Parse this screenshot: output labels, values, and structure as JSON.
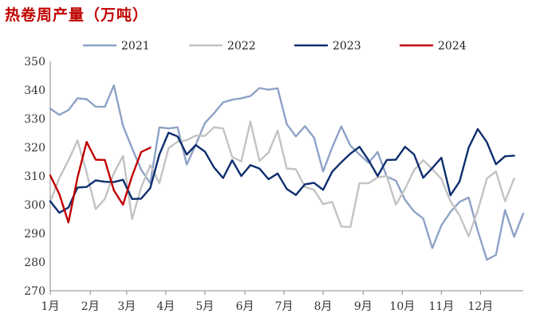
{
  "chart_data": {
    "type": "line",
    "title": "热卷周产量（万吨）",
    "xlabel": "",
    "ylabel": "",
    "ylim": [
      270,
      350
    ],
    "yticks": [
      270,
      280,
      290,
      300,
      310,
      320,
      330,
      340,
      350
    ],
    "x_range": [
      1,
      53
    ],
    "x_ticks": [
      {
        "label": "1月",
        "week": 1
      },
      {
        "label": "2月",
        "week": 5.4
      },
      {
        "label": "3月",
        "week": 9.4
      },
      {
        "label": "4月",
        "week": 13.7
      },
      {
        "label": "5月",
        "week": 18
      },
      {
        "label": "6月",
        "week": 22.4
      },
      {
        "label": "7月",
        "week": 26.7
      },
      {
        "label": "8月",
        "week": 31
      },
      {
        "label": "9月",
        "week": 35.4
      },
      {
        "label": "10月",
        "week": 39.7
      },
      {
        "label": "11月",
        "week": 44
      },
      {
        "label": "12月",
        "week": 48.3
      }
    ],
    "grid": false,
    "legend_position": "top",
    "series": [
      {
        "name": "2021",
        "color": "#8ea2c6",
        "values": [
          333.5,
          331.3,
          333.0,
          337.1,
          336.8,
          334.2,
          334.1,
          341.6,
          327.5,
          319.7,
          312.2,
          307.5,
          327.0,
          326.6,
          327.0,
          314.0,
          321.0,
          328.5,
          331.9,
          335.7,
          336.6,
          337.1,
          337.9,
          340.7,
          340.1,
          340.6,
          328.1,
          323.8,
          327.4,
          323.4,
          311.6,
          320.0,
          327.3,
          320.6,
          317.5,
          314.6,
          318.4,
          309.8,
          308.4,
          301.7,
          297.6,
          295.2,
          284.9,
          292.8,
          297.5,
          301.0,
          302.5,
          290.9,
          280.8,
          282.5,
          298.1,
          288.8,
          296.9
        ]
      },
      {
        "name": "2022",
        "color": "#c3c3c3",
        "values": [
          301.0,
          309.3,
          315.5,
          322.4,
          311.2,
          298.5,
          302.0,
          311.0,
          317.0,
          295.0,
          306.0,
          313.8,
          307.5,
          319.7,
          322.0,
          322.5,
          324.1,
          324.0,
          327.0,
          326.6,
          316.6,
          315.1,
          329.0,
          315.3,
          318.2,
          325.9,
          312.6,
          312.4,
          306.2,
          305.2,
          300.2,
          301.0,
          292.4,
          292.2,
          307.5,
          307.5,
          309.5,
          310.0,
          300.0,
          305.5,
          312.1,
          315.5,
          312.4,
          309.0,
          301.2,
          296.2,
          289.0,
          298.0,
          309.1,
          311.6,
          301.2,
          309.1
        ]
      },
      {
        "name": "2023",
        "color": "#0d2e6e",
        "values": [
          301.2,
          297.2,
          299.0,
          306.0,
          306.2,
          308.5,
          308.0,
          307.9,
          308.7,
          302.0,
          302.1,
          305.8,
          317.5,
          325.1,
          323.8,
          317.5,
          320.8,
          318.5,
          313.0,
          309.3,
          315.5,
          310.0,
          313.8,
          312.6,
          308.9,
          310.9,
          305.5,
          303.4,
          307.1,
          307.6,
          305.2,
          311.5,
          314.8,
          317.8,
          320.2,
          315.5,
          310.0,
          315.6,
          315.7,
          320.2,
          317.5,
          309.4,
          312.8,
          316.4,
          303.3,
          308.1,
          319.9,
          326.4,
          321.8,
          314.1,
          316.9,
          317.1
        ]
      },
      {
        "name": "2024",
        "color": "#c00000",
        "values": [
          310.2,
          303.7,
          293.8,
          309.5,
          321.9,
          315.7,
          315.6,
          305.0,
          300.0,
          310.0,
          318.4,
          319.9
        ]
      }
    ]
  }
}
